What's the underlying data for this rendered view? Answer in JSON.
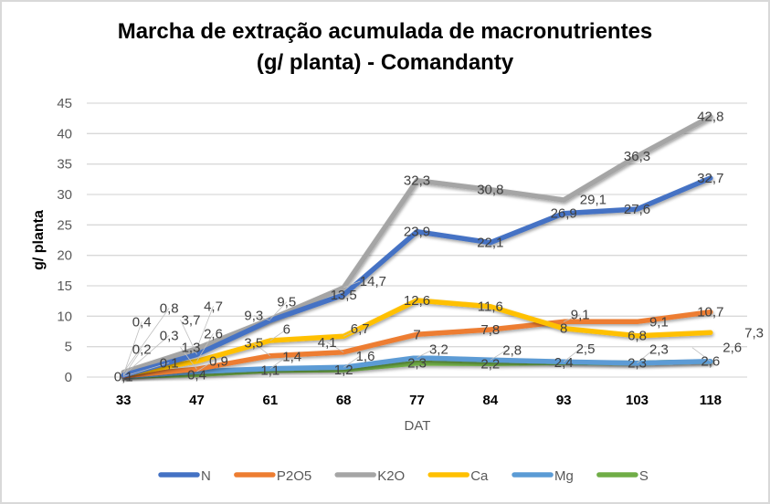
{
  "chart_data": {
    "type": "line",
    "title": "Marcha de extração acumulada de macronutrientes (g/ planta) - Comandanty",
    "title_lines": [
      "Marcha de extração acumulada de macronutrientes",
      "(g/ planta) - Comandanty"
    ],
    "xlabel": "DAT",
    "ylabel": "g/ planta",
    "categories": [
      "33",
      "47",
      "61",
      "68",
      "77",
      "84",
      "93",
      "103",
      "118"
    ],
    "ylim": [
      0,
      45
    ],
    "yticks": [
      0,
      5,
      10,
      15,
      20,
      25,
      30,
      35,
      40,
      45
    ],
    "grid": true,
    "legend_position": "bottom",
    "data_labels": true,
    "decimal_separator": ",",
    "series": [
      {
        "name": "N",
        "color": "#4472c4",
        "values": [
          0.3,
          3.7,
          9.3,
          13.5,
          23.9,
          22.1,
          26.9,
          27.6,
          32.7
        ]
      },
      {
        "name": "P2O5",
        "color": "#ed7d31",
        "values": [
          0.2,
          1.3,
          3.5,
          4.1,
          7.0,
          7.8,
          9.1,
          9.1,
          10.7
        ]
      },
      {
        "name": "K2O",
        "color": "#a5a5a5",
        "values": [
          0.8,
          4.7,
          9.5,
          14.7,
          32.3,
          30.8,
          29.1,
          36.3,
          42.8
        ]
      },
      {
        "name": "Ca",
        "color": "#ffc000",
        "values": [
          0.4,
          2.6,
          6.0,
          6.7,
          12.6,
          11.6,
          8.0,
          6.8,
          7.3
        ]
      },
      {
        "name": "Mg",
        "color": "#5b9bd5",
        "values": [
          0.1,
          0.9,
          1.4,
          1.6,
          3.2,
          2.8,
          2.5,
          2.3,
          2.6
        ]
      },
      {
        "name": "S",
        "color": "#70ad47",
        "values": [
          0.1,
          0.4,
          1.1,
          1.2,
          2.3,
          2.2,
          2.4,
          2.3,
          2.6
        ]
      }
    ]
  }
}
